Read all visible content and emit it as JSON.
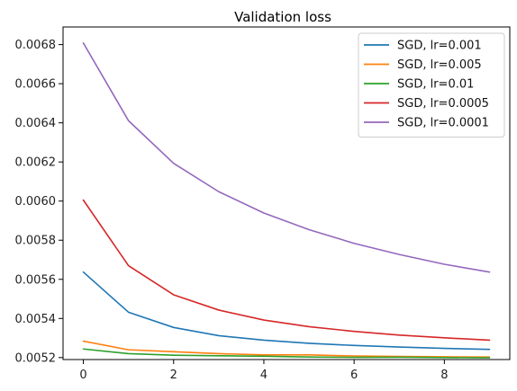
{
  "chart_data": {
    "type": "line",
    "title": "Validation loss",
    "xlabel": "",
    "ylabel": "",
    "x": [
      0,
      1,
      2,
      3,
      4,
      5,
      6,
      7,
      8,
      9
    ],
    "xlim": [
      -0.45,
      9.45
    ],
    "ylim": [
      0.00519,
      0.00689
    ],
    "x_ticks": [
      0,
      2,
      4,
      6,
      8
    ],
    "y_ticks": [
      0.0052,
      0.0054,
      0.0056,
      0.0058,
      0.006,
      0.0062,
      0.0064,
      0.0066,
      0.0068
    ],
    "y_tick_labels": [
      "0.0052",
      "0.0054",
      "0.0056",
      "0.0058",
      "0.0060",
      "0.0062",
      "0.0064",
      "0.0066",
      "0.0068"
    ],
    "x_tick_labels": [
      "0",
      "2",
      "4",
      "6",
      "8"
    ],
    "grid": false,
    "legend_position": "top-right",
    "series": [
      {
        "name": "SGD, lr=0.001",
        "color": "#1f77b4",
        "values": [
          0.005637,
          0.005432,
          0.005354,
          0.005312,
          0.005289,
          0.005273,
          0.005262,
          0.005254,
          0.005247,
          0.005242
        ]
      },
      {
        "name": "SGD, lr=0.005",
        "color": "#ff7f0e",
        "values": [
          0.005284,
          0.00524,
          0.00523,
          0.00522,
          0.005214,
          0.005214,
          0.005208,
          0.005206,
          0.005204,
          0.005203
        ]
      },
      {
        "name": "SGD, lr=0.01",
        "color": "#2ca02c",
        "values": [
          0.005244,
          0.00522,
          0.005212,
          0.005209,
          0.005207,
          0.005203,
          0.005201,
          0.005202,
          0.0052,
          0.005199
        ]
      },
      {
        "name": "SGD, lr=0.0005",
        "color": "#d62728",
        "values": [
          0.006005,
          0.00567,
          0.005521,
          0.005443,
          0.005392,
          0.005358,
          0.005334,
          0.005315,
          0.005301,
          0.005289
        ]
      },
      {
        "name": "SGD, lr=0.0001",
        "color": "#9467bd",
        "values": [
          0.006808,
          0.006411,
          0.006193,
          0.006048,
          0.005939,
          0.005854,
          0.005784,
          0.005727,
          0.005677,
          0.005637
        ]
      }
    ]
  }
}
